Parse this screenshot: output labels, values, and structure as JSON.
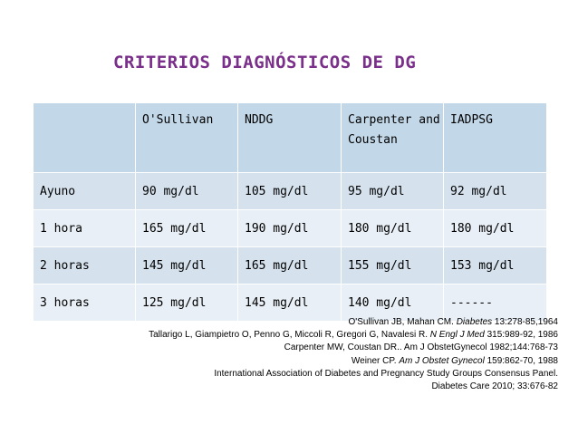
{
  "title": "CRITERIOS DIAGNÓSTICOS DE DG",
  "table": {
    "headers": [
      "",
      "O'Sullivan",
      "NDDG",
      "Carpenter and Coustan",
      "IADPSG"
    ],
    "rows": [
      [
        "Ayuno",
        "90 mg/dl",
        "105 mg/dl",
        "95 mg/dl",
        "92 mg/dl"
      ],
      [
        "1 hora",
        "165 mg/dl",
        "190 mg/dl",
        "180 mg/dl",
        "180 mg/dl"
      ],
      [
        "2 horas",
        "145 mg/dl",
        "165 mg/dl",
        "155 mg/dl",
        "153 mg/dl"
      ],
      [
        "3 horas",
        "125 mg/dl",
        "145 mg/dl",
        "140 mg/dl",
        "------"
      ]
    ]
  },
  "references": [
    {
      "pre": "O'Sullivan JB, Mahan CM. ",
      "ital": "Diabetes",
      "post": " 13:278-85,1964"
    },
    {
      "pre": "Tallarigo L, Giampietro O, Penno G, Miccoli R, Gregori G, Navalesi R. ",
      "ital": "N Engl J Med",
      "post": " 315:989-92, 1986"
    },
    {
      "pre": "Carpenter MW, Coustan DR.. Am J ObstetGynecol 1982;144:768-73",
      "ital": "",
      "post": ""
    },
    {
      "pre": "Weiner CP. ",
      "ital": "Am J Obstet Gynecol",
      "post": " 159:862-70, 1988"
    },
    {
      "pre": "International Association of Diabetes and Pregnancy Study Groups Consensus Panel.",
      "ital": "",
      "post": ""
    },
    {
      "pre": "Diabetes Care 2010; 33:676-82",
      "ital": "",
      "post": ""
    }
  ]
}
